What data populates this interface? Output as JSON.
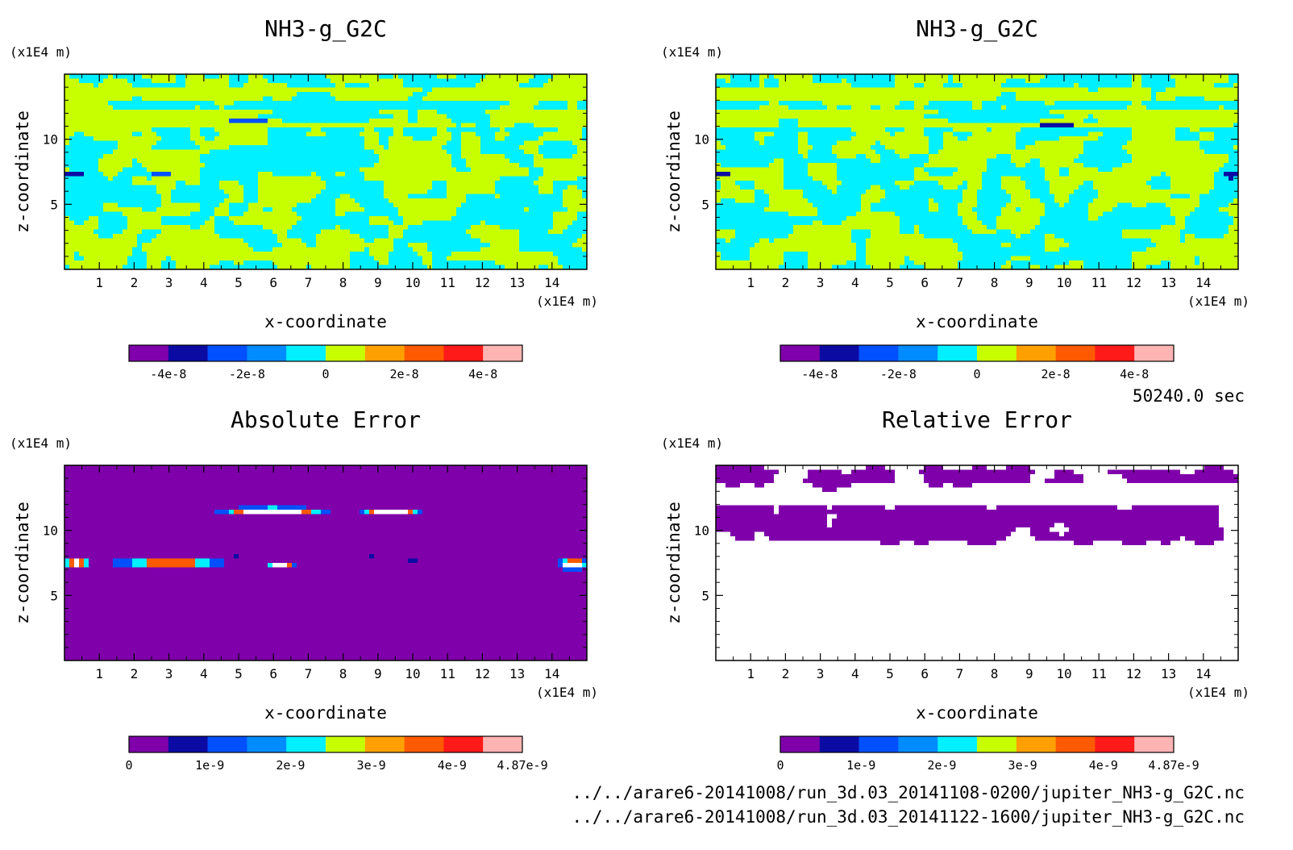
{
  "chart_data": [
    {
      "type": "heatmap",
      "title": "NH3-g_G2C",
      "xlabel": "x-coordinate",
      "ylabel": "z-coordinate",
      "x_unit": "(x1E4 m)",
      "y_unit": "(x1E4 m)",
      "xlim": [
        0,
        15
      ],
      "ylim": [
        0,
        15
      ],
      "xticks": [
        "1",
        "2",
        "3",
        "4",
        "5",
        "6",
        "7",
        "8",
        "9",
        "10",
        "11",
        "12",
        "13",
        "14"
      ],
      "yticks": [
        "5",
        "10"
      ],
      "pattern": "field",
      "features": [
        {
          "kind": "band",
          "y0": 11.0,
          "y1": 13.9,
          "value": 1
        },
        {
          "kind": "band",
          "y0": 12.2,
          "y1": 12.8,
          "value": 0
        },
        {
          "kind": "blob",
          "x": 6.5,
          "y": 8.5,
          "rx": 2.6,
          "ry": 1.2,
          "value": 0
        },
        {
          "kind": "blob",
          "x": 14.2,
          "y": 9.2,
          "rx": 0.6,
          "ry": 0.7,
          "value": 0
        },
        {
          "kind": "blob",
          "x": 7.5,
          "y": 11.8,
          "rx": 2.0,
          "ry": 0.5,
          "value": 0
        },
        {
          "kind": "blob",
          "x": 5.3,
          "y": 11.4,
          "rx": 0.6,
          "ry": 0.18,
          "value": -2
        },
        {
          "kind": "blob",
          "x": 0.3,
          "y": 7.4,
          "rx": 0.3,
          "ry": 0.22,
          "value": -3
        },
        {
          "kind": "blob",
          "x": 2.8,
          "y": 7.3,
          "rx": 0.3,
          "ry": 0.15,
          "value": -2
        }
      ],
      "colorbar": {
        "colors": [
          "#7f00aa",
          "#0b0ba4",
          "#0050ff",
          "#008cff",
          "#00f0ff",
          "#c8ff00",
          "#ffa000",
          "#ff5a00",
          "#ff1a1a",
          "#ffb4b4"
        ],
        "labels": [
          "-4e-8",
          "-2e-8",
          "0",
          "2e-8",
          "4e-8"
        ],
        "range": [
          -5e-08,
          5e-08
        ]
      }
    },
    {
      "type": "heatmap",
      "title": "NH3-g_G2C",
      "xlabel": "x-coordinate",
      "ylabel": "z-coordinate",
      "x_unit": "(x1E4 m)",
      "y_unit": "(x1E4 m)",
      "xlim": [
        0,
        15
      ],
      "ylim": [
        0,
        15
      ],
      "xticks": [
        "1",
        "2",
        "3",
        "4",
        "5",
        "6",
        "7",
        "8",
        "9",
        "10",
        "11",
        "12",
        "13",
        "14"
      ],
      "yticks": [
        "5",
        "10"
      ],
      "pattern": "field",
      "features": [
        {
          "kind": "band",
          "y0": 11.0,
          "y1": 13.9,
          "value": 1
        },
        {
          "kind": "band",
          "y0": 12.2,
          "y1": 12.8,
          "value": 0
        },
        {
          "kind": "blob",
          "x": 0.8,
          "y": 8.6,
          "rx": 0.9,
          "ry": 0.9,
          "value": 0
        },
        {
          "kind": "blob",
          "x": 6.5,
          "y": 7.6,
          "rx": 0.5,
          "ry": 0.4,
          "value": 0
        },
        {
          "kind": "blob",
          "x": 8.0,
          "y": 11.8,
          "rx": 2.0,
          "ry": 0.5,
          "value": 0
        },
        {
          "kind": "blob",
          "x": 9.8,
          "y": 11.2,
          "rx": 0.6,
          "ry": 0.2,
          "value": -3
        },
        {
          "kind": "blob",
          "x": 0.2,
          "y": 7.4,
          "rx": 0.25,
          "ry": 0.2,
          "value": -3
        },
        {
          "kind": "blob",
          "x": 14.8,
          "y": 7.2,
          "rx": 0.25,
          "ry": 0.22,
          "value": -3
        }
      ],
      "colorbar": {
        "colors": [
          "#7f00aa",
          "#0b0ba4",
          "#0050ff",
          "#008cff",
          "#00f0ff",
          "#c8ff00",
          "#ffa000",
          "#ff5a00",
          "#ff1a1a",
          "#ffb4b4"
        ],
        "labels": [
          "-4e-8",
          "-2e-8",
          "0",
          "2e-8",
          "4e-8"
        ],
        "range": [
          -5e-08,
          5e-08
        ]
      }
    },
    {
      "type": "heatmap",
      "title": "Absolute Error",
      "xlabel": "x-coordinate",
      "ylabel": "z-coordinate",
      "x_unit": "(x1E4 m)",
      "y_unit": "(x1E4 m)",
      "xlim": [
        0,
        15
      ],
      "ylim": [
        0,
        15
      ],
      "xticks": [
        "1",
        "2",
        "3",
        "4",
        "5",
        "6",
        "7",
        "8",
        "9",
        "10",
        "11",
        "12",
        "13",
        "14"
      ],
      "yticks": [
        "5",
        "10"
      ],
      "pattern": "abs",
      "features": [
        {
          "kind": "spot",
          "x": 6.0,
          "y": 11.5,
          "rx": 1.7,
          "ry": 0.32
        },
        {
          "kind": "spot",
          "x": 9.4,
          "y": 11.4,
          "rx": 0.9,
          "ry": 0.3
        },
        {
          "kind": "spot",
          "x": 3.0,
          "y": 7.5,
          "rx": 2.0,
          "ry": 0.28
        },
        {
          "kind": "spot",
          "x": 6.2,
          "y": 7.4,
          "rx": 0.45,
          "ry": 0.26
        },
        {
          "kind": "spot",
          "x": 0.35,
          "y": 7.5,
          "rx": 0.45,
          "ry": 0.35
        },
        {
          "kind": "spot",
          "x": 14.6,
          "y": 7.4,
          "rx": 0.45,
          "ry": 0.5
        },
        {
          "kind": "dot",
          "x": 8.8,
          "y": 7.9,
          "rx": 0.2,
          "ry": 0.12
        },
        {
          "kind": "dot",
          "x": 10.0,
          "y": 7.7,
          "rx": 0.15,
          "ry": 0.1
        },
        {
          "kind": "dot",
          "x": 4.9,
          "y": 7.9,
          "rx": 0.2,
          "ry": 0.12
        }
      ],
      "colorbar": {
        "colors": [
          "#7f00aa",
          "#0b0ba4",
          "#0050ff",
          "#008cff",
          "#00f0ff",
          "#c8ff00",
          "#ffa000",
          "#ff5a00",
          "#ff1a1a",
          "#ffb4b4"
        ],
        "labels": [
          "0",
          "1e-9",
          "2e-9",
          "3e-9",
          "4e-9",
          "4.87e-9"
        ],
        "range": [
          0,
          4.87e-09
        ]
      }
    },
    {
      "type": "heatmap",
      "title": "Relative Error",
      "xlabel": "x-coordinate",
      "ylabel": "z-coordinate",
      "x_unit": "(x1E4 m)",
      "y_unit": "(x1E4 m)",
      "xlim": [
        0,
        15
      ],
      "ylim": [
        0,
        15
      ],
      "xticks": [
        "1",
        "2",
        "3",
        "4",
        "5",
        "6",
        "7",
        "8",
        "9",
        "10",
        "11",
        "12",
        "13",
        "14"
      ],
      "yticks": [
        "5",
        "10"
      ],
      "pattern": "rel",
      "features": [
        {
          "kind": "band",
          "y0": 13.6,
          "y1": 14.8,
          "value": 0
        },
        {
          "kind": "band",
          "y0": 9.2,
          "y1": 11.8,
          "value": 0
        }
      ],
      "colorbar": {
        "colors": [
          "#7f00aa",
          "#0b0ba4",
          "#0050ff",
          "#008cff",
          "#00f0ff",
          "#c8ff00",
          "#ffa000",
          "#ff5a00",
          "#ff1a1a",
          "#ffb4b4"
        ],
        "labels": [
          "0",
          "1e-9",
          "2e-9",
          "3e-9",
          "4e-9",
          "4.87e-9"
        ],
        "range": [
          0,
          4.87e-09
        ]
      }
    }
  ],
  "timestamp": "50240.0 sec",
  "file_paths": [
    "../../arare6-20141008/run_3d.03_20141108-0200/jupiter_NH3-g_G2C.nc",
    "../../arare6-20141008/run_3d.03_20141122-1600/jupiter_NH3-g_G2C.nc"
  ]
}
